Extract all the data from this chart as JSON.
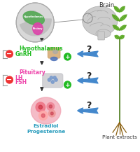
{
  "background_color": "#ffffff",
  "brain_label": "Brain",
  "plant_label": "Plant extracts",
  "hypothalamus_label": "Hypothalamus",
  "gnrh_label": "GnRH",
  "pituitary_label": "Pituitary",
  "lh_label": "LH",
  "fsh_label": "FSH",
  "estradiol_label": "Estradiol",
  "progesterone_label": "Progesterone",
  "question_marks": [
    "?",
    "?",
    "?"
  ],
  "hypothalamus_color": "#22bb22",
  "gnrh_color": "#22bb22",
  "pituitary_color": "#ee44aa",
  "lhfsh_color": "#ee44aa",
  "estradiol_color": "#2299bb",
  "minus_bg": "#ee3333",
  "plus_bg": "#22bb22",
  "blue_arrow_color": "#4488cc",
  "down_arrow_color": "#333333",
  "bracket_color": "#999999",
  "inset_bg": "#e0e0e0",
  "inset_border": "#aaaaaa",
  "hypo_fill": "#55aa55",
  "pitu_fill": "#dd44aa",
  "brain_fill": "#cccccc",
  "brain_outline": "#aaaaaa"
}
